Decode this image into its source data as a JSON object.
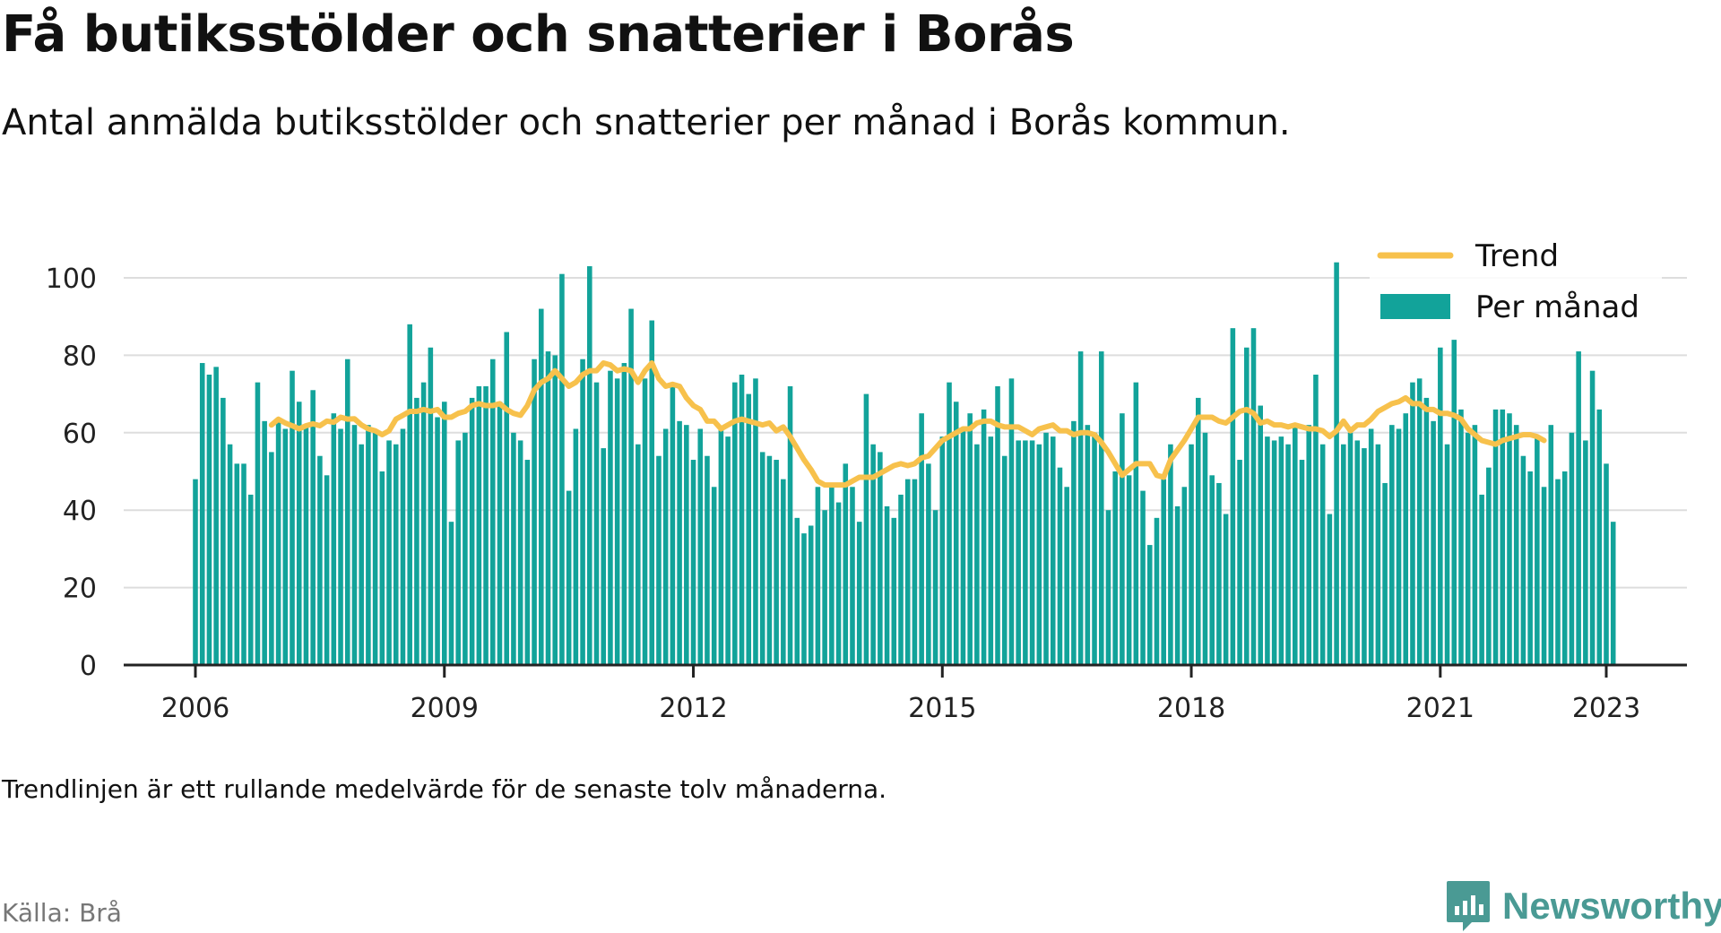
{
  "title": "Få butiksstölder och snatterier i Borås",
  "subtitle": "Antal anmälda butiksstölder och snatterier per månad i Borås kommun.",
  "note": "Trendlinjen är ett rullande medelvärde för de senaste tolv månaderna.",
  "source": "Källa: Brå",
  "logo": {
    "text": "Newsworthy",
    "icon": "bar-chart-logo-icon"
  },
  "colors": {
    "bars": "#12a39a",
    "trend": "#f7c14c",
    "grid": "#dddddd",
    "axis": "#222222"
  },
  "chart_data": {
    "type": "bar",
    "title": "Få butiksstölder och snatterier i Borås",
    "subtitle": "Antal anmälda butiksstölder och snatterier per månad i Borås kommun.",
    "xlabel": "",
    "ylabel": "",
    "ylim": [
      0,
      100
    ],
    "yticks": [
      0,
      20,
      40,
      60,
      80,
      100
    ],
    "xticks": [
      "2006",
      "2009",
      "2012",
      "2015",
      "2018",
      "2021",
      "2023"
    ],
    "start": "2006-01",
    "end": "2023-02",
    "grid": "horizontal",
    "legend_position": "top-right",
    "series": [
      {
        "name": "Per månad",
        "type": "bar",
        "values": [
          48,
          78,
          75,
          77,
          69,
          57,
          52,
          52,
          44,
          73,
          63,
          55,
          63,
          61,
          76,
          68,
          62,
          71,
          54,
          49,
          65,
          61,
          79,
          62,
          57,
          62,
          60,
          50,
          58,
          57,
          61,
          88,
          69,
          73,
          82,
          64,
          68,
          37,
          58,
          60,
          69,
          72,
          72,
          79,
          68,
          86,
          60,
          58,
          53,
          79,
          92,
          81,
          80,
          101,
          45,
          61,
          79,
          103,
          73,
          56,
          76,
          74,
          78,
          92,
          57,
          74,
          89,
          54,
          61,
          72,
          63,
          62,
          53,
          61,
          54,
          46,
          61,
          59,
          73,
          75,
          70,
          74,
          55,
          54,
          53,
          48,
          72,
          38,
          34,
          36,
          46,
          40,
          47,
          42,
          52,
          46,
          37,
          70,
          57,
          55,
          41,
          38,
          44,
          48,
          48,
          65,
          52,
          40,
          59,
          73,
          68,
          61,
          65,
          57,
          66,
          59,
          72,
          54,
          74,
          58,
          58,
          58,
          57,
          60,
          59,
          51,
          46,
          63,
          81,
          62,
          60,
          81,
          40,
          50,
          65,
          49,
          73,
          45,
          31,
          38,
          48,
          57,
          41,
          46,
          57,
          69,
          60,
          49,
          47,
          39,
          87,
          53,
          82,
          87,
          67,
          59,
          58,
          59,
          57,
          62,
          53,
          62,
          75,
          57,
          39,
          104,
          57,
          60,
          58,
          56,
          61,
          57,
          47,
          62,
          61,
          65,
          73,
          74,
          69,
          63,
          82,
          57,
          84,
          66,
          60,
          62,
          44,
          51,
          66,
          66,
          65,
          62,
          54,
          50,
          59,
          46,
          62,
          48,
          50,
          60,
          81,
          58,
          76,
          66,
          52,
          37
        ]
      },
      {
        "name": "Trend",
        "type": "line",
        "start": "2006-12",
        "values": [
          62,
          63.5,
          62.5,
          61.8,
          61,
          61.8,
          62.3,
          61.8,
          63,
          62.7,
          64,
          63.5,
          63.6,
          62,
          61,
          60.5,
          59.5,
          60.5,
          63.5,
          64.5,
          65.5,
          65.5,
          66,
          65.5,
          66,
          64,
          64,
          65,
          65.5,
          67,
          67.5,
          67,
          67,
          67.5,
          66,
          65,
          64.5,
          67,
          71,
          73,
          74,
          76,
          74,
          72,
          73,
          75,
          76,
          76,
          78,
          77.5,
          76,
          76.5,
          76,
          73,
          76,
          78,
          74,
          72,
          72.5,
          72,
          69,
          67,
          66,
          63,
          63,
          61,
          62,
          63,
          63.5,
          63,
          62.5,
          62,
          62.5,
          60.5,
          61.5,
          59,
          56,
          53,
          50.5,
          47.5,
          46.5,
          46.5,
          46.5,
          46.5,
          47.5,
          48.5,
          48.5,
          48.5,
          49.5,
          50.5,
          51.5,
          52,
          51.5,
          52,
          53.5,
          54,
          56,
          58,
          59,
          60,
          61,
          61,
          62.5,
          63,
          63,
          62,
          61.5,
          61.5,
          61.5,
          60.5,
          59.5,
          61,
          61.5,
          62,
          60.5,
          60.5,
          59.5,
          60,
          60,
          59.5,
          57.5,
          55,
          52,
          49,
          50.5,
          52,
          52,
          52,
          49,
          48.5,
          53,
          55.5,
          58,
          61,
          64,
          64,
          64,
          63,
          62.5,
          64,
          65.5,
          66,
          65,
          62.5,
          63,
          62,
          62,
          61.5,
          62,
          61.5,
          61,
          61,
          60.5,
          59,
          60.5,
          63,
          60.5,
          62,
          62,
          63.5,
          65.5,
          66.5,
          67.5,
          68,
          69,
          67.5,
          67.5,
          66,
          66,
          65,
          65,
          64.5,
          63.5,
          61,
          59.5,
          58,
          57.5,
          57,
          58,
          58.5,
          59,
          59.5,
          59.5,
          59,
          58
        ]
      }
    ]
  }
}
